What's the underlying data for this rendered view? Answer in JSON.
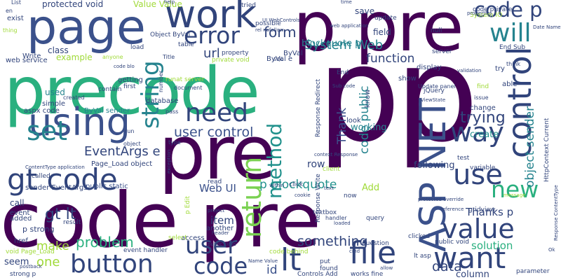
{
  "palette": {
    "background": "#ffffff",
    "dark_purple": "#440154",
    "navy": "#31447b",
    "slate": "#3b518b",
    "teal": "#25838e",
    "sea_green": "#21918c",
    "green": "#2ab07f",
    "lime": "#a0da39",
    "light_green": "#7ad151"
  },
  "words": [
    {
      "text": "code pre",
      "color": "#440154"
    },
    {
      "text": "precode",
      "color": "#2ab07f"
    },
    {
      "text": "p pre",
      "color": "#440154"
    },
    {
      "text": "pre",
      "color": "#440154"
    },
    {
      "text": "pp",
      "color": "#440154"
    },
    {
      "text": "page",
      "color": "#3b518b"
    },
    {
      "text": "work",
      "color": "#31447b"
    },
    {
      "text": "error",
      "color": "#31447b"
    },
    {
      "text": "code p",
      "color": "#31447b"
    },
    {
      "text": "will",
      "color": "#25838e"
    },
    {
      "text": "using",
      "color": "#3b518b"
    },
    {
      "text": "set",
      "color": "#25838e"
    },
    {
      "text": "gt code",
      "color": "#31447b"
    },
    {
      "text": "need",
      "color": "#31447b"
    },
    {
      "text": "string",
      "color": "#25838e"
    },
    {
      "text": "control",
      "color": "#31447b"
    },
    {
      "text": "ASP NET",
      "color": "#3b518b"
    },
    {
      "text": "use",
      "color": "#31447b"
    },
    {
      "text": "new",
      "color": "#2ab07f"
    },
    {
      "text": "way",
      "color": "#31447b"
    },
    {
      "text": "value",
      "color": "#31447b"
    },
    {
      "text": "want",
      "color": "#31447b"
    },
    {
      "text": "file",
      "color": "#31447b"
    },
    {
      "text": "button",
      "color": "#31447b"
    },
    {
      "text": "code",
      "color": "#31447b"
    },
    {
      "text": "lt",
      "color": "#31447b"
    },
    {
      "text": "user",
      "color": "#31447b"
    },
    {
      "text": "return",
      "color": "#7ad151"
    },
    {
      "text": "method",
      "color": "#21918c"
    },
    {
      "text": "user control",
      "color": "#3b518b"
    },
    {
      "text": "EventArgs e",
      "color": "#31447b"
    },
    {
      "text": "Web UI",
      "color": "#3b518b"
    },
    {
      "text": "p blockquote",
      "color": "#21918c"
    },
    {
      "text": "gt lt",
      "color": "#31447b"
    },
    {
      "text": "problem",
      "color": "#2ab07f"
    },
    {
      "text": "something",
      "color": "#31447b"
    },
    {
      "text": "data",
      "color": "#31447b"
    },
    {
      "text": "Thanks p",
      "color": "#31447b"
    },
    {
      "text": "System Web",
      "color": "#25838e"
    },
    {
      "text": "function",
      "color": "#31447b"
    },
    {
      "text": "trying",
      "color": "#31447b"
    },
    {
      "text": "form",
      "color": "#31447b"
    },
    {
      "text": "url",
      "color": "#31447b"
    },
    {
      "text": "blockquote p",
      "color": "#25838e"
    },
    {
      "text": "object sender",
      "color": "#25838e"
    },
    {
      "text": "code public",
      "color": "#25838e"
    },
    {
      "text": "Thank",
      "color": "#3b518b"
    },
    {
      "text": "one",
      "color": "#a0da39"
    },
    {
      "text": "make",
      "color": "#a0da39"
    },
    {
      "text": "seem",
      "color": "#31447b"
    },
    {
      "text": "id",
      "color": "#3b518b"
    },
    {
      "text": "item",
      "color": "#31447b"
    },
    {
      "text": "solution",
      "color": "#2ab07f"
    },
    {
      "text": "column",
      "color": "#31447b"
    },
    {
      "text": "create",
      "color": "#21918c"
    },
    {
      "text": "following",
      "color": "#31447b"
    },
    {
      "text": "Add",
      "color": "#a0da39"
    },
    {
      "text": "row",
      "color": "#31447b"
    },
    {
      "text": "working",
      "color": "#25838e"
    },
    {
      "text": "protected void",
      "color": "#31447b"
    },
    {
      "text": "Value Value",
      "color": "#a0da39"
    },
    {
      "text": "save",
      "color": "#31447b"
    },
    {
      "text": "field",
      "color": "#31447b"
    },
    {
      "text": "update",
      "color": "#31447b"
    },
    {
      "text": "exist",
      "color": "#31447b"
    },
    {
      "text": "class",
      "color": "#31447b"
    },
    {
      "text": "example",
      "color": "#a0da39"
    },
    {
      "text": "web service",
      "color": "#31447b"
    },
    {
      "text": "property",
      "color": "#31447b"
    },
    {
      "text": "private void",
      "color": "#a0da39"
    },
    {
      "text": "ByVal",
      "color": "#31447b"
    },
    {
      "text": "ByVal e",
      "color": "#31447b"
    },
    {
      "text": "Object ByVal",
      "color": "#31447b"
    },
    {
      "text": "table",
      "color": "#31447b"
    },
    {
      "text": "load",
      "color": "#31447b"
    },
    {
      "text": "getting",
      "color": "#31447b"
    },
    {
      "text": "used",
      "color": "#25838e"
    },
    {
      "text": "simple",
      "color": "#31447b"
    },
    {
      "text": "aspx code",
      "color": "#31447b"
    },
    {
      "text": "ByVal sender",
      "color": "#25838e"
    },
    {
      "text": "first",
      "color": "#31447b"
    },
    {
      "text": "database",
      "color": "#31447b"
    },
    {
      "text": "Page_Load object",
      "color": "#31447b"
    },
    {
      "text": "public static",
      "color": "#3b518b"
    },
    {
      "text": "sender EventArgs",
      "color": "#31447b"
    },
    {
      "text": "called",
      "color": "#31447b"
    },
    {
      "text": "call",
      "color": "#31447b"
    },
    {
      "text": "event",
      "color": "#31447b"
    },
    {
      "text": "added",
      "color": "#31447b"
    },
    {
      "text": "result",
      "color": "#31447b"
    },
    {
      "text": "p strong",
      "color": "#31447b"
    },
    {
      "text": "href",
      "color": "#31447b"
    },
    {
      "text": "void Page_Load",
      "color": "#a0da39"
    },
    {
      "text": "strong p",
      "color": "#31447b"
    },
    {
      "text": "event handler",
      "color": "#31447b"
    },
    {
      "text": "access",
      "color": "#31447b"
    },
    {
      "text": "another",
      "color": "#31447b"
    },
    {
      "text": "textbox",
      "color": "#31447b"
    },
    {
      "text": "gridview",
      "color": "#31447b"
    },
    {
      "text": "query",
      "color": "#31447b"
    },
    {
      "text": "question",
      "color": "#31447b"
    },
    {
      "text": "code behind",
      "color": "#a0da39"
    },
    {
      "text": "found",
      "color": "#31447b"
    },
    {
      "text": "put",
      "color": "#31447b"
    },
    {
      "text": "Controls Add",
      "color": "#31447b"
    },
    {
      "text": "works fine",
      "color": "#31447b"
    },
    {
      "text": "parameter",
      "color": "#31447b"
    },
    {
      "text": "public void",
      "color": "#31447b"
    },
    {
      "text": "lt asp",
      "color": "#31447b"
    },
    {
      "text": "variable",
      "color": "#31447b"
    },
    {
      "text": "test",
      "color": "#31447b"
    },
    {
      "text": "change",
      "color": "#31447b"
    },
    {
      "text": "try",
      "color": "#31447b"
    },
    {
      "text": "able",
      "color": "#31447b"
    },
    {
      "text": "show",
      "color": "#31447b"
    },
    {
      "text": "display",
      "color": "#31447b"
    },
    {
      "text": "jQuery",
      "color": "#31447b"
    },
    {
      "text": "End",
      "color": "#31447b"
    },
    {
      "text": "End Sub",
      "color": "#31447b"
    },
    {
      "text": "server",
      "color": "#31447b"
    },
    {
      "text": "null",
      "color": "#31447b"
    },
    {
      "text": "System IO",
      "color": "#a0da39"
    },
    {
      "text": "HttpContext Current",
      "color": "#31447b"
    },
    {
      "text": "Response Redirect",
      "color": "#31447b"
    },
    {
      "text": "Response Write",
      "color": "#31447b"
    },
    {
      "text": "look",
      "color": "#31447b"
    },
    {
      "text": "know",
      "color": "#31447b"
    },
    {
      "text": "p Edit",
      "color": "#a0da39"
    },
    {
      "text": "read",
      "color": "#31447b"
    },
    {
      "text": "click",
      "color": "#31447b"
    },
    {
      "text": "client",
      "color": "#a0da39"
    },
    {
      "text": "now",
      "color": "#31447b"
    },
    {
      "text": "runat server",
      "color": "#a0da39"
    },
    {
      "text": "tried",
      "color": "#31447b"
    },
    {
      "text": "possible",
      "color": "#31447b"
    },
    {
      "text": "anyone",
      "color": "#a0da39"
    },
    {
      "text": "Title",
      "color": "#31447b"
    },
    {
      "text": "thing",
      "color": "#a0da39"
    },
    {
      "text": "Write",
      "color": "#31447b"
    },
    {
      "text": "contain",
      "color": "#31447b"
    },
    {
      "text": "created",
      "color": "#31447b"
    },
    {
      "text": "run",
      "color": "#31447b"
    },
    {
      "text": "type",
      "color": "#31447b"
    },
    {
      "text": "pass",
      "color": "#31447b"
    },
    {
      "text": "number",
      "color": "#31447b"
    },
    {
      "text": "document",
      "color": "#31447b"
    },
    {
      "text": "within",
      "color": "#31447b"
    },
    {
      "text": "text",
      "color": "#31447b"
    },
    {
      "text": "find",
      "color": "#a0da39"
    },
    {
      "text": "issue",
      "color": "#31447b"
    },
    {
      "text": "code private",
      "color": "#31447b"
    },
    {
      "text": "properties",
      "color": "#31447b"
    },
    {
      "text": "validation",
      "color": "#31447b"
    },
    {
      "text": "think",
      "color": "#31447b"
    },
    {
      "text": "Update panel",
      "color": "#31447b"
    },
    {
      "text": "reference",
      "color": "#31447b"
    },
    {
      "text": "message",
      "color": "#a0da39"
    },
    {
      "text": "allow",
      "color": "#31447b"
    },
    {
      "text": "header",
      "color": "#31447b"
    },
    {
      "text": "project",
      "color": "#31447b"
    },
    {
      "text": "public class",
      "color": "#31447b"
    },
    {
      "text": "Name Value",
      "color": "#31447b"
    },
    {
      "text": "clicked",
      "color": "#31447b"
    },
    {
      "text": "Ok",
      "color": "#31447b"
    },
    {
      "text": "loaded",
      "color": "#31447b"
    },
    {
      "text": "handler",
      "color": "#31447b"
    },
    {
      "text": "Response ContentType",
      "color": "#31447b"
    },
    {
      "text": "context Response",
      "color": "#31447b"
    },
    {
      "text": "object",
      "color": "#31447b"
    },
    {
      "text": "exception",
      "color": "#31447b"
    },
    {
      "text": "ContentType application",
      "color": "#31447b"
    },
    {
      "text": "select",
      "color": "#a0da39"
    },
    {
      "text": "List",
      "color": "#31447b"
    },
    {
      "text": "en",
      "color": "#31447b"
    },
    {
      "text": "time",
      "color": "#31447b"
    },
    {
      "text": "help",
      "color": "#31447b"
    },
    {
      "text": "cookie",
      "color": "#31447b"
    },
    {
      "text": "Date Name",
      "color": "#31447b"
    },
    {
      "text": "web application",
      "color": "#31447b"
    },
    {
      "text": "rel nofollow",
      "color": "#31447b"
    },
    {
      "text": "UI WebControls",
      "color": "#31447b"
    },
    {
      "text": "code blo",
      "color": "#31447b"
    },
    {
      "text": "SQL",
      "color": "#31447b"
    },
    {
      "text": "ViewState",
      "color": "#31447b"
    },
    {
      "text": "Sub code",
      "color": "#31447b"
    },
    {
      "text": "protected override",
      "color": "#31447b"
    },
    {
      "text": "postback",
      "color": "#31447b"
    },
    {
      "text": "cmd",
      "color": "#31447b"
    }
  ]
}
